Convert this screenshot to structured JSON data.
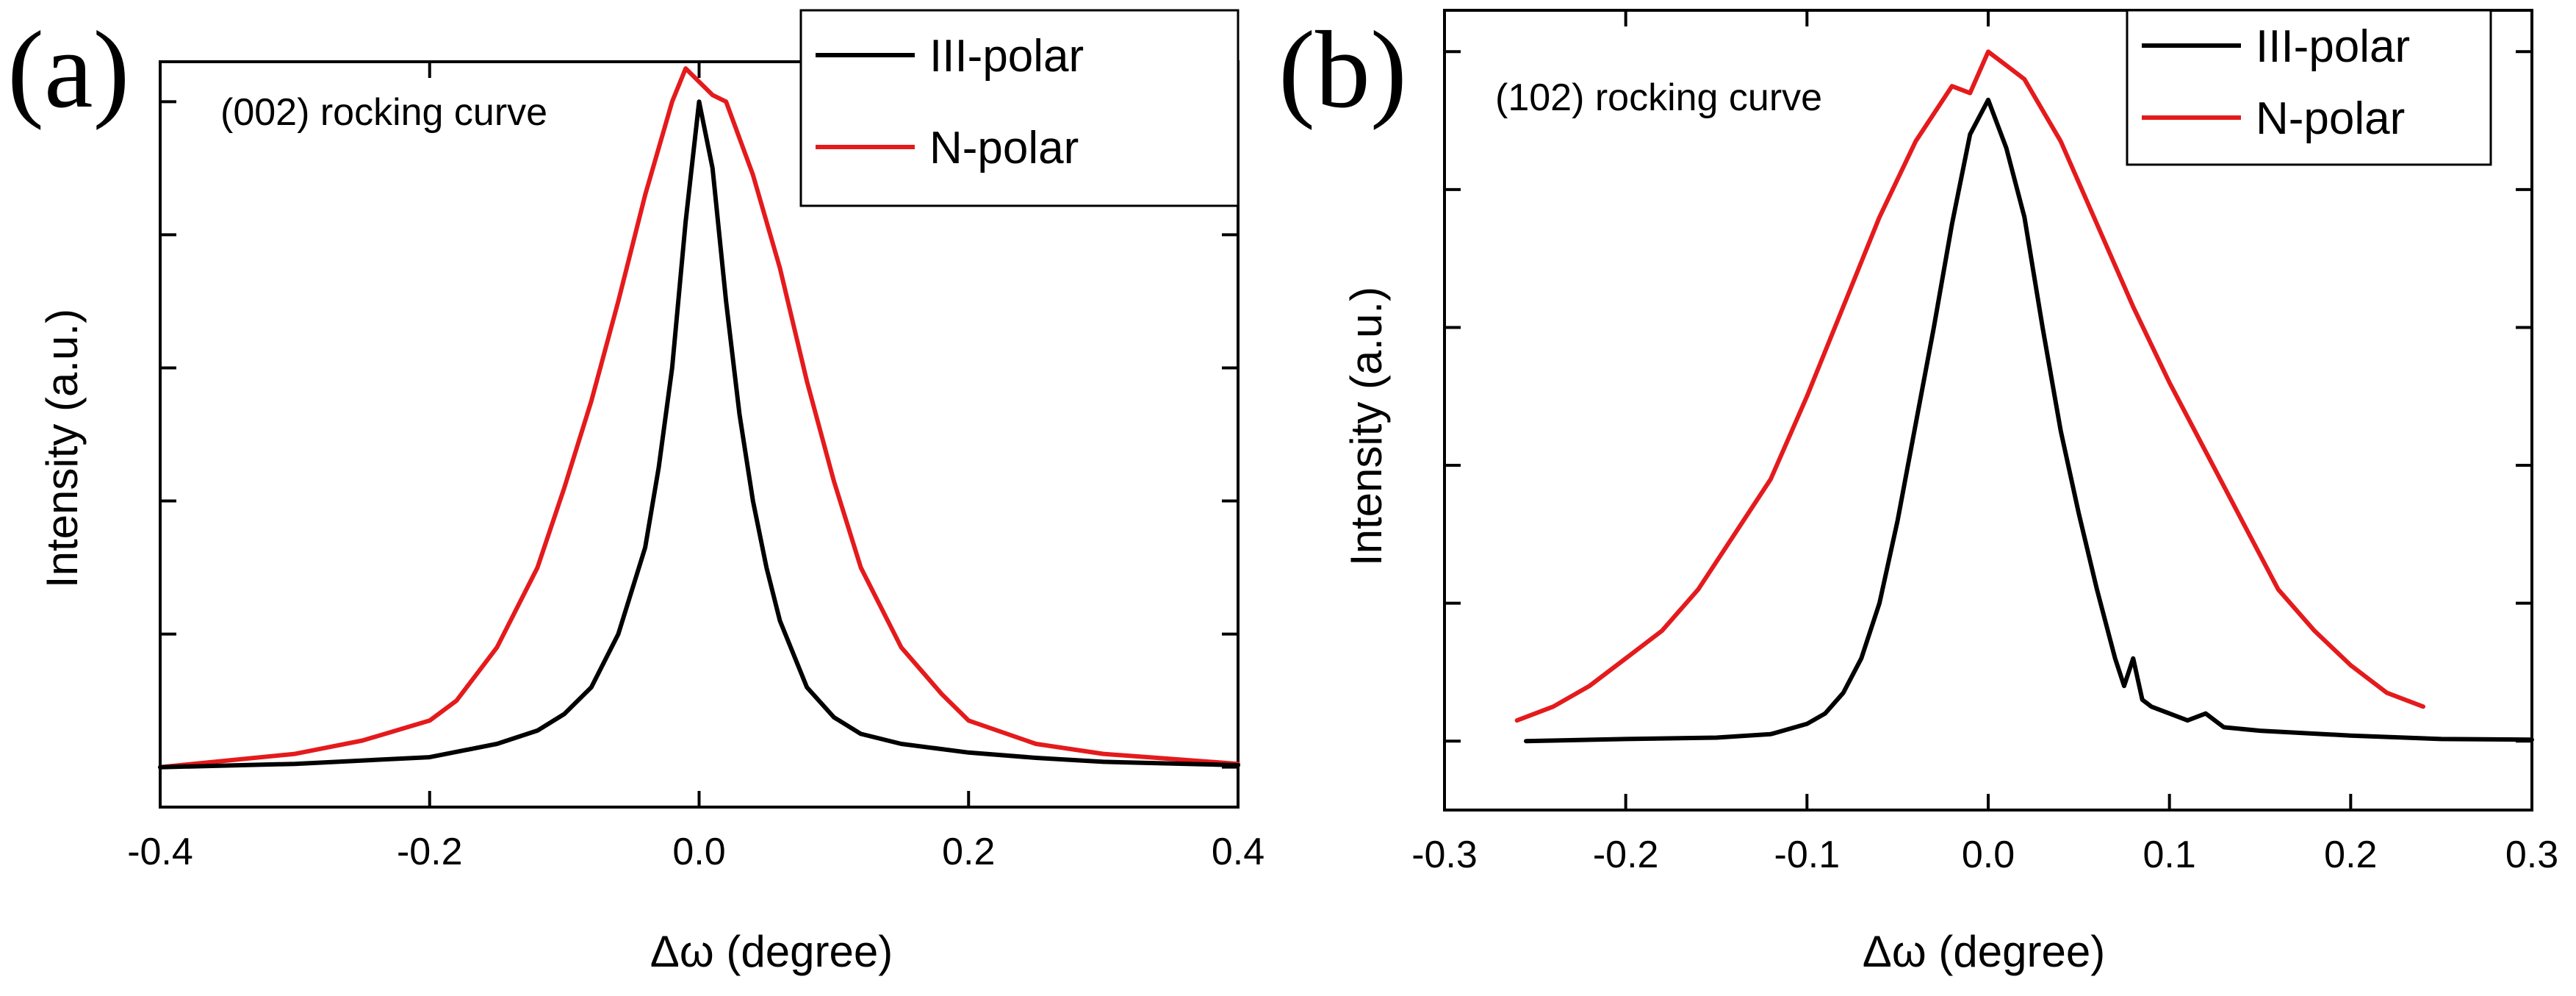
{
  "chart_data": [
    {
      "type": "line",
      "panel": "(a)",
      "annotation": "(002) rocking curve",
      "xlabel": "Δω (degree)",
      "ylabel": "Intensity (a.u.)",
      "xlim": [
        -0.4,
        0.4
      ],
      "ylim": [
        -0.06,
        1.06
      ],
      "xticks": [
        -0.4,
        -0.2,
        0.0,
        0.2,
        0.4
      ],
      "xtick_labels": [
        "-0.4",
        "-0.2",
        "0.0",
        "0.2",
        "0.4"
      ],
      "yticks": [
        0,
        0.2,
        0.4,
        0.6,
        0.8,
        1.0
      ],
      "legend": "top-right",
      "series": [
        {
          "name": "III-polar",
          "color": "#000000",
          "x": [
            -0.4,
            -0.3,
            -0.2,
            -0.15,
            -0.12,
            -0.1,
            -0.08,
            -0.06,
            -0.04,
            -0.03,
            -0.02,
            -0.01,
            0.0,
            0.01,
            0.02,
            0.03,
            0.04,
            0.05,
            0.06,
            0.08,
            0.1,
            0.12,
            0.15,
            0.2,
            0.25,
            0.3,
            0.4
          ],
          "y": [
            0.0,
            0.005,
            0.015,
            0.035,
            0.055,
            0.08,
            0.12,
            0.2,
            0.33,
            0.45,
            0.6,
            0.82,
            1.0,
            0.9,
            0.7,
            0.53,
            0.4,
            0.3,
            0.22,
            0.12,
            0.075,
            0.05,
            0.035,
            0.022,
            0.014,
            0.008,
            0.003
          ]
        },
        {
          "name": "N-polar",
          "color": "#e41a1c",
          "x": [
            -0.4,
            -0.3,
            -0.25,
            -0.2,
            -0.18,
            -0.15,
            -0.12,
            -0.1,
            -0.08,
            -0.06,
            -0.04,
            -0.02,
            -0.01,
            0.0,
            0.01,
            0.02,
            0.04,
            0.06,
            0.08,
            0.1,
            0.12,
            0.15,
            0.18,
            0.2,
            0.25,
            0.3,
            0.4
          ],
          "y": [
            0.0,
            0.02,
            0.04,
            0.07,
            0.1,
            0.18,
            0.3,
            0.42,
            0.55,
            0.7,
            0.86,
            1.0,
            1.05,
            1.03,
            1.01,
            1.0,
            0.89,
            0.75,
            0.58,
            0.43,
            0.3,
            0.18,
            0.11,
            0.07,
            0.035,
            0.02,
            0.005
          ]
        }
      ]
    },
    {
      "type": "line",
      "panel": "(b)",
      "annotation": "(102) rocking curve",
      "xlabel": "Δω (degree)",
      "ylabel": "Intensity (a.u.)",
      "xlim": [
        -0.3,
        0.3
      ],
      "ylim": [
        -0.1,
        1.06
      ],
      "xticks": [
        -0.3,
        -0.2,
        -0.1,
        0.0,
        0.1,
        0.2,
        0.3
      ],
      "xtick_labels": [
        "-0.3",
        "-0.2",
        "-0.1",
        "0.0",
        "0.1",
        "0.2",
        "0.3"
      ],
      "yticks": [
        0,
        0.2,
        0.4,
        0.6,
        0.8,
        1.0
      ],
      "legend": "top-right",
      "series": [
        {
          "name": "III-polar",
          "color": "#000000",
          "x": [
            -0.255,
            -0.2,
            -0.15,
            -0.12,
            -0.1,
            -0.09,
            -0.08,
            -0.07,
            -0.06,
            -0.05,
            -0.04,
            -0.03,
            -0.02,
            -0.01,
            0.0,
            0.01,
            0.02,
            0.03,
            0.04,
            0.05,
            0.06,
            0.07,
            0.075,
            0.08,
            0.085,
            0.09,
            0.1,
            0.11,
            0.12,
            0.13,
            0.15,
            0.2,
            0.25,
            0.3
          ],
          "y": [
            0.0,
            0.003,
            0.005,
            0.01,
            0.025,
            0.04,
            0.07,
            0.12,
            0.2,
            0.32,
            0.46,
            0.6,
            0.75,
            0.88,
            0.93,
            0.86,
            0.76,
            0.6,
            0.45,
            0.33,
            0.22,
            0.12,
            0.08,
            0.12,
            0.06,
            0.05,
            0.04,
            0.03,
            0.04,
            0.02,
            0.015,
            0.008,
            0.003,
            0.002
          ]
        },
        {
          "name": "N-polar",
          "color": "#e41a1c",
          "x": [
            -0.26,
            -0.24,
            -0.22,
            -0.2,
            -0.18,
            -0.16,
            -0.14,
            -0.12,
            -0.1,
            -0.08,
            -0.06,
            -0.04,
            -0.02,
            -0.01,
            0.0,
            0.01,
            0.02,
            0.04,
            0.06,
            0.08,
            0.1,
            0.12,
            0.14,
            0.16,
            0.18,
            0.2,
            0.22,
            0.24
          ],
          "y": [
            0.03,
            0.05,
            0.08,
            0.12,
            0.16,
            0.22,
            0.3,
            0.38,
            0.5,
            0.63,
            0.76,
            0.87,
            0.95,
            0.94,
            1.0,
            0.98,
            0.96,
            0.87,
            0.75,
            0.63,
            0.52,
            0.42,
            0.32,
            0.22,
            0.16,
            0.11,
            0.07,
            0.05
          ]
        }
      ]
    }
  ]
}
